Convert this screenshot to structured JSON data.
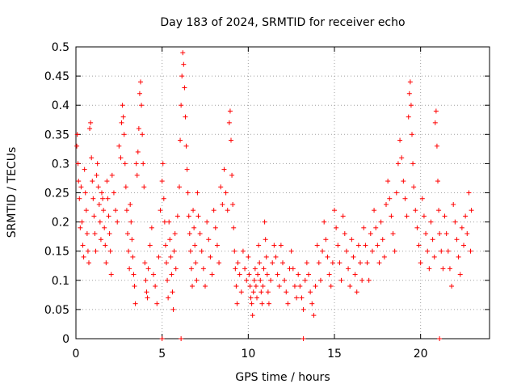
{
  "chart_data": {
    "type": "scatter",
    "title": "Day 183 of 2024, SRMTID for receiver echo",
    "xlabel": "GPS time / hours",
    "ylabel": "SRMTID / TECUs",
    "xlim": [
      0,
      24
    ],
    "ylim": [
      0,
      0.5
    ],
    "xticks": [
      0,
      5,
      10,
      15,
      20
    ],
    "xtick_labels": [
      "0",
      "5",
      "10",
      "15",
      "20"
    ],
    "yticks": [
      0,
      0.05,
      0.1,
      0.15,
      0.2,
      0.25,
      0.3,
      0.35,
      0.4,
      0.45,
      0.5
    ],
    "ytick_labels": [
      "0",
      "0.05",
      "0.1",
      "0.15",
      "0.2",
      "0.25",
      "0.3",
      "0.35",
      "0.4",
      "0.45",
      "0.5"
    ],
    "grid": true,
    "marker": "plus",
    "color": "#ff0000",
    "series": [
      {
        "name": "SRMTID",
        "points": [
          [
            0.05,
            0.33
          ],
          [
            0.08,
            0.35
          ],
          [
            0.12,
            0.3
          ],
          [
            0.15,
            0.27
          ],
          [
            0.2,
            0.24
          ],
          [
            0.25,
            0.19
          ],
          [
            0.3,
            0.26
          ],
          [
            0.35,
            0.2
          ],
          [
            0.4,
            0.16
          ],
          [
            0.45,
            0.14
          ],
          [
            0.5,
            0.29
          ],
          [
            0.55,
            0.25
          ],
          [
            0.6,
            0.22
          ],
          [
            0.65,
            0.18
          ],
          [
            0.7,
            0.15
          ],
          [
            0.75,
            0.13
          ],
          [
            0.8,
            0.36
          ],
          [
            0.85,
            0.37
          ],
          [
            0.9,
            0.31
          ],
          [
            0.95,
            0.27
          ],
          [
            1.0,
            0.24
          ],
          [
            1.05,
            0.21
          ],
          [
            1.1,
            0.18
          ],
          [
            1.15,
            0.15
          ],
          [
            1.2,
            0.28
          ],
          [
            1.25,
            0.3
          ],
          [
            1.3,
            0.26
          ],
          [
            1.35,
            0.23
          ],
          [
            1.4,
            0.2
          ],
          [
            1.45,
            0.17
          ],
          [
            1.5,
            0.25
          ],
          [
            1.55,
            0.24
          ],
          [
            1.6,
            0.22
          ],
          [
            1.65,
            0.19
          ],
          [
            1.7,
            0.16
          ],
          [
            1.75,
            0.13
          ],
          [
            1.8,
            0.27
          ],
          [
            1.85,
            0.24
          ],
          [
            1.9,
            0.21
          ],
          [
            1.95,
            0.18
          ],
          [
            2.0,
            0.15
          ],
          [
            2.05,
            0.11
          ],
          [
            2.1,
            0.28
          ],
          [
            2.2,
            0.25
          ],
          [
            2.3,
            0.22
          ],
          [
            2.4,
            0.2
          ],
          [
            2.5,
            0.33
          ],
          [
            2.6,
            0.31
          ],
          [
            2.65,
            0.37
          ],
          [
            2.7,
            0.4
          ],
          [
            2.75,
            0.38
          ],
          [
            2.8,
            0.35
          ],
          [
            2.85,
            0.3
          ],
          [
            2.9,
            0.26
          ],
          [
            2.95,
            0.22
          ],
          [
            3.0,
            0.18
          ],
          [
            3.05,
            0.15
          ],
          [
            3.1,
            0.12
          ],
          [
            3.15,
            0.23
          ],
          [
            3.2,
            0.2
          ],
          [
            3.25,
            0.17
          ],
          [
            3.3,
            0.14
          ],
          [
            3.35,
            0.11
          ],
          [
            3.4,
            0.09
          ],
          [
            3.45,
            0.06
          ],
          [
            3.5,
            0.3
          ],
          [
            3.55,
            0.28
          ],
          [
            3.6,
            0.32
          ],
          [
            3.65,
            0.36
          ],
          [
            3.7,
            0.42
          ],
          [
            3.75,
            0.44
          ],
          [
            3.8,
            0.4
          ],
          [
            3.85,
            0.35
          ],
          [
            3.9,
            0.3
          ],
          [
            3.95,
            0.26
          ],
          [
            4.0,
            0.13
          ],
          [
            4.05,
            0.1
          ],
          [
            4.1,
            0.08
          ],
          [
            4.15,
            0.07
          ],
          [
            4.2,
            0.12
          ],
          [
            4.3,
            0.16
          ],
          [
            4.4,
            0.19
          ],
          [
            4.5,
            0.11
          ],
          [
            4.6,
            0.09
          ],
          [
            4.7,
            0.06
          ],
          [
            4.8,
            0.14
          ],
          [
            4.9,
            0.22
          ],
          [
            5.0,
            0.27
          ],
          [
            5.05,
            0.3
          ],
          [
            5.1,
            0.24
          ],
          [
            5.15,
            0.2
          ],
          [
            5.2,
            0.16
          ],
          [
            5.25,
            0.13
          ],
          [
            5.3,
            0.1
          ],
          [
            5.35,
            0.07
          ],
          [
            5.4,
            0.2
          ],
          [
            5.45,
            0.17
          ],
          [
            5.5,
            0.14
          ],
          [
            5.55,
            0.11
          ],
          [
            5.6,
            0.08
          ],
          [
            5.65,
            0.05
          ],
          [
            5.7,
            0.15
          ],
          [
            5.75,
            0.18
          ],
          [
            5.8,
            0.12
          ],
          [
            5.9,
            0.21
          ],
          [
            6.0,
            0.26
          ],
          [
            6.05,
            0.34
          ],
          [
            6.1,
            0.4
          ],
          [
            6.15,
            0.45
          ],
          [
            6.2,
            0.49
          ],
          [
            6.25,
            0.47
          ],
          [
            6.3,
            0.43
          ],
          [
            6.35,
            0.38
          ],
          [
            6.4,
            0.33
          ],
          [
            6.45,
            0.29
          ],
          [
            6.5,
            0.25
          ],
          [
            6.55,
            0.21
          ],
          [
            6.6,
            0.18
          ],
          [
            6.65,
            0.15
          ],
          [
            6.7,
            0.12
          ],
          [
            6.75,
            0.09
          ],
          [
            6.8,
            0.22
          ],
          [
            6.85,
            0.19
          ],
          [
            6.9,
            0.16
          ],
          [
            6.95,
            0.13
          ],
          [
            7.0,
            0.1
          ],
          [
            7.05,
            0.25
          ],
          [
            7.1,
            0.21
          ],
          [
            7.2,
            0.18
          ],
          [
            7.3,
            0.15
          ],
          [
            7.4,
            0.12
          ],
          [
            7.5,
            0.09
          ],
          [
            7.6,
            0.2
          ],
          [
            7.7,
            0.17
          ],
          [
            7.8,
            0.14
          ],
          [
            7.9,
            0.11
          ],
          [
            8.0,
            0.22
          ],
          [
            8.1,
            0.19
          ],
          [
            8.2,
            0.16
          ],
          [
            8.3,
            0.13
          ],
          [
            8.4,
            0.26
          ],
          [
            8.5,
            0.23
          ],
          [
            8.6,
            0.29
          ],
          [
            8.7,
            0.25
          ],
          [
            8.8,
            0.22
          ],
          [
            8.9,
            0.37
          ],
          [
            8.95,
            0.39
          ],
          [
            9.0,
            0.34
          ],
          [
            9.05,
            0.28
          ],
          [
            9.1,
            0.23
          ],
          [
            9.15,
            0.19
          ],
          [
            9.2,
            0.15
          ],
          [
            9.25,
            0.12
          ],
          [
            9.3,
            0.09
          ],
          [
            9.35,
            0.06
          ],
          [
            9.4,
            0.13
          ],
          [
            9.5,
            0.11
          ],
          [
            9.6,
            0.08
          ],
          [
            9.7,
            0.15
          ],
          [
            9.8,
            0.12
          ],
          [
            9.9,
            0.1
          ],
          [
            10.0,
            0.14
          ],
          [
            10.05,
            0.11
          ],
          [
            10.1,
            0.09
          ],
          [
            10.15,
            0.07
          ],
          [
            10.2,
            0.06
          ],
          [
            10.25,
            0.04
          ],
          [
            10.3,
            0.08
          ],
          [
            10.35,
            0.1
          ],
          [
            10.4,
            0.12
          ],
          [
            10.45,
            0.09
          ],
          [
            10.5,
            0.07
          ],
          [
            10.55,
            0.11
          ],
          [
            10.6,
            0.16
          ],
          [
            10.65,
            0.13
          ],
          [
            10.7,
            0.1
          ],
          [
            10.75,
            0.08
          ],
          [
            10.8,
            0.06
          ],
          [
            10.85,
            0.09
          ],
          [
            10.9,
            0.12
          ],
          [
            10.95,
            0.2
          ],
          [
            11.0,
            0.17
          ],
          [
            11.05,
            0.14
          ],
          [
            11.1,
            0.11
          ],
          [
            11.15,
            0.08
          ],
          [
            11.2,
            0.06
          ],
          [
            11.3,
            0.1
          ],
          [
            11.4,
            0.13
          ],
          [
            11.5,
            0.16
          ],
          [
            11.6,
            0.14
          ],
          [
            11.7,
            0.11
          ],
          [
            11.8,
            0.09
          ],
          [
            11.9,
            0.16
          ],
          [
            12.0,
            0.13
          ],
          [
            12.1,
            0.1
          ],
          [
            12.2,
            0.08
          ],
          [
            12.3,
            0.06
          ],
          [
            12.4,
            0.12
          ],
          [
            12.5,
            0.15
          ],
          [
            12.6,
            0.12
          ],
          [
            12.7,
            0.09
          ],
          [
            12.8,
            0.07
          ],
          [
            12.9,
            0.11
          ],
          [
            13.0,
            0.09
          ],
          [
            13.1,
            0.07
          ],
          [
            13.2,
            0.05
          ],
          [
            13.3,
            0.1
          ],
          [
            13.4,
            0.13
          ],
          [
            13.5,
            0.11
          ],
          [
            13.6,
            0.08
          ],
          [
            13.7,
            0.06
          ],
          [
            13.8,
            0.04
          ],
          [
            13.9,
            0.09
          ],
          [
            14.0,
            0.16
          ],
          [
            14.1,
            0.13
          ],
          [
            14.2,
            0.1
          ],
          [
            14.3,
            0.15
          ],
          [
            14.4,
            0.2
          ],
          [
            14.5,
            0.17
          ],
          [
            14.6,
            0.14
          ],
          [
            14.7,
            0.11
          ],
          [
            14.8,
            0.09
          ],
          [
            14.9,
            0.13
          ],
          [
            15.0,
            0.22
          ],
          [
            15.1,
            0.19
          ],
          [
            15.2,
            0.16
          ],
          [
            15.3,
            0.13
          ],
          [
            15.4,
            0.1
          ],
          [
            15.5,
            0.21
          ],
          [
            15.6,
            0.18
          ],
          [
            15.7,
            0.15
          ],
          [
            15.8,
            0.12
          ],
          [
            15.9,
            0.09
          ],
          [
            16.0,
            0.17
          ],
          [
            16.1,
            0.14
          ],
          [
            16.2,
            0.11
          ],
          [
            16.3,
            0.08
          ],
          [
            16.4,
            0.16
          ],
          [
            16.5,
            0.13
          ],
          [
            16.6,
            0.1
          ],
          [
            16.7,
            0.19
          ],
          [
            16.8,
            0.16
          ],
          [
            16.9,
            0.13
          ],
          [
            17.0,
            0.1
          ],
          [
            17.1,
            0.18
          ],
          [
            17.2,
            0.15
          ],
          [
            17.3,
            0.22
          ],
          [
            17.4,
            0.19
          ],
          [
            17.5,
            0.16
          ],
          [
            17.6,
            0.13
          ],
          [
            17.7,
            0.2
          ],
          [
            17.8,
            0.17
          ],
          [
            17.9,
            0.14
          ],
          [
            18.0,
            0.23
          ],
          [
            18.1,
            0.27
          ],
          [
            18.2,
            0.24
          ],
          [
            18.3,
            0.21
          ],
          [
            18.4,
            0.18
          ],
          [
            18.5,
            0.15
          ],
          [
            18.6,
            0.25
          ],
          [
            18.7,
            0.3
          ],
          [
            18.8,
            0.34
          ],
          [
            18.9,
            0.31
          ],
          [
            19.0,
            0.27
          ],
          [
            19.1,
            0.24
          ],
          [
            19.2,
            0.21
          ],
          [
            19.3,
            0.38
          ],
          [
            19.35,
            0.42
          ],
          [
            19.4,
            0.44
          ],
          [
            19.45,
            0.4
          ],
          [
            19.5,
            0.35
          ],
          [
            19.55,
            0.3
          ],
          [
            19.6,
            0.26
          ],
          [
            19.7,
            0.22
          ],
          [
            19.8,
            0.19
          ],
          [
            19.9,
            0.16
          ],
          [
            20.0,
            0.13
          ],
          [
            20.1,
            0.24
          ],
          [
            20.2,
            0.21
          ],
          [
            20.3,
            0.18
          ],
          [
            20.4,
            0.15
          ],
          [
            20.5,
            0.12
          ],
          [
            20.6,
            0.2
          ],
          [
            20.7,
            0.17
          ],
          [
            20.8,
            0.14
          ],
          [
            20.85,
            0.37
          ],
          [
            20.9,
            0.39
          ],
          [
            20.95,
            0.33
          ],
          [
            21.0,
            0.27
          ],
          [
            21.05,
            0.22
          ],
          [
            21.1,
            0.18
          ],
          [
            21.2,
            0.15
          ],
          [
            21.3,
            0.12
          ],
          [
            21.4,
            0.21
          ],
          [
            21.5,
            0.18
          ],
          [
            21.6,
            0.15
          ],
          [
            21.7,
            0.12
          ],
          [
            21.8,
            0.09
          ],
          [
            21.9,
            0.23
          ],
          [
            22.0,
            0.2
          ],
          [
            22.1,
            0.17
          ],
          [
            22.2,
            0.14
          ],
          [
            22.3,
            0.11
          ],
          [
            22.4,
            0.19
          ],
          [
            22.5,
            0.16
          ],
          [
            22.6,
            0.21
          ],
          [
            22.7,
            0.18
          ],
          [
            22.8,
            0.25
          ],
          [
            22.9,
            0.15
          ],
          [
            22.95,
            0.22
          ],
          [
            5.0,
            0.0
          ],
          [
            6.1,
            0.0
          ],
          [
            13.2,
            0.0
          ],
          [
            21.1,
            0.0
          ]
        ]
      }
    ]
  }
}
